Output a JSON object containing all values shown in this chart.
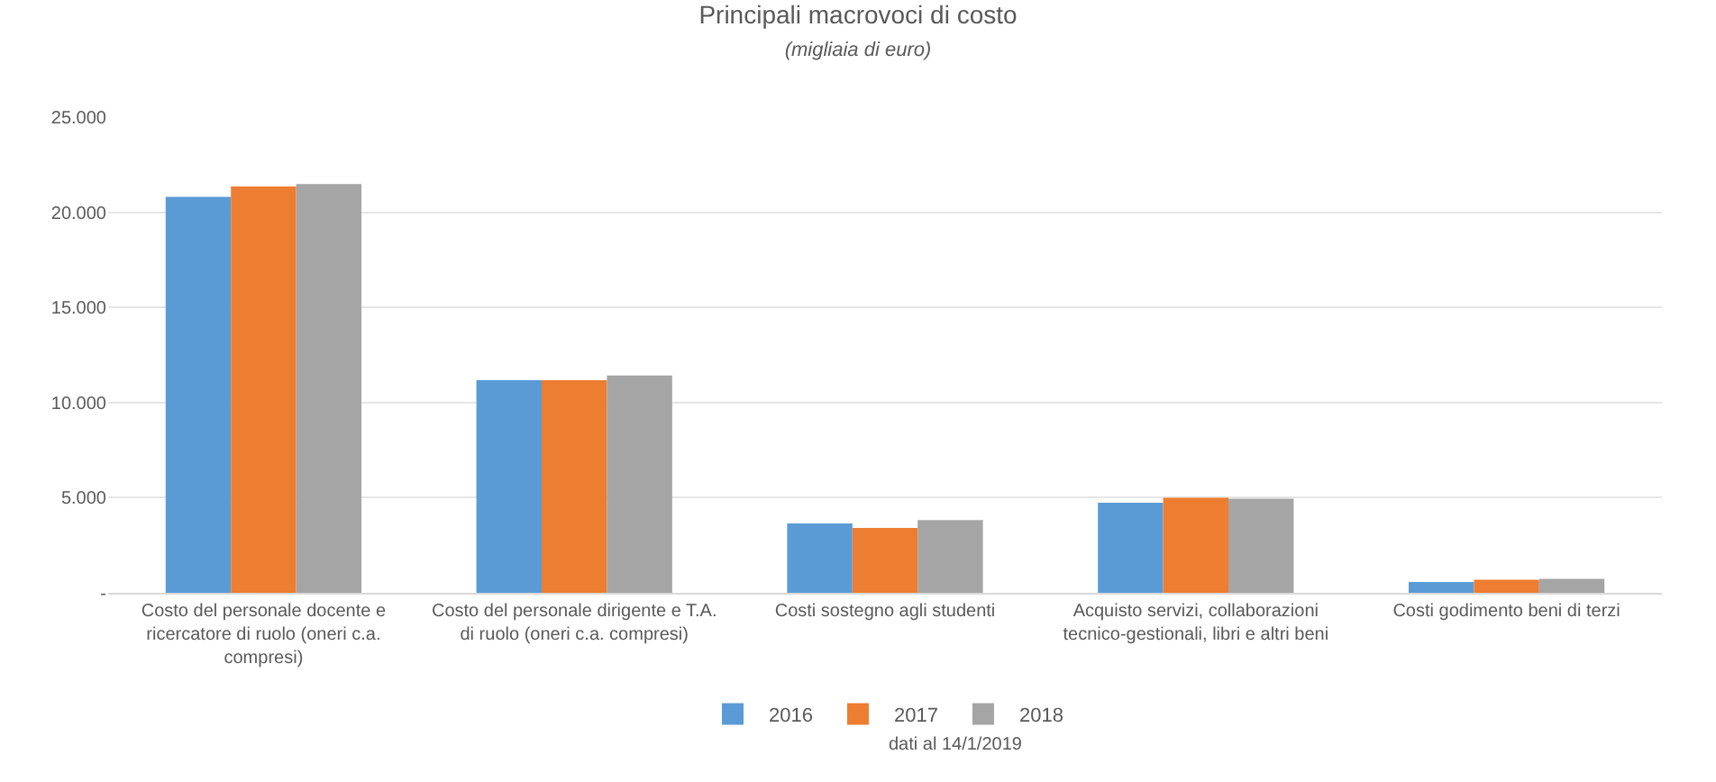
{
  "chart_data": {
    "type": "bar",
    "title": "Principali macrovoci di costo",
    "subtitle": "(migliaia di euro)",
    "categories": [
      "Costo del personale docente e ricercatore di ruolo (oneri c.a. compresi)",
      "Costo del personale dirigente e T.A. di ruolo (oneri c.a. compresi)",
      "Costi sostegno agli studenti",
      "Acquisto servizi, collaborazioni tecnico-gestionali, libri e altri beni",
      "Costi godimento beni di terzi"
    ],
    "series": [
      {
        "name": "2016",
        "color": "#5b9bd5",
        "values": [
          20810,
          11180,
          3640,
          4740,
          570
        ]
      },
      {
        "name": "2017",
        "color": "#ed7d31",
        "values": [
          21360,
          11180,
          3410,
          5000,
          690
        ]
      },
      {
        "name": "2018",
        "color": "#a5a5a5",
        "values": [
          21480,
          11420,
          3820,
          4950,
          740
        ]
      }
    ],
    "ylim": [
      0,
      25000
    ],
    "yticks": [
      {
        "value": 0,
        "label": "-"
      },
      {
        "value": 5000,
        "label": "5.000"
      },
      {
        "value": 10000,
        "label": "10.000"
      },
      {
        "value": 15000,
        "label": "15.000"
      },
      {
        "value": 20000,
        "label": "20.000"
      },
      {
        "value": 25000,
        "label": "25.000"
      }
    ],
    "grid": "y",
    "legend": "bottom",
    "annotations": [
      "dati al 14/1/2019"
    ]
  }
}
